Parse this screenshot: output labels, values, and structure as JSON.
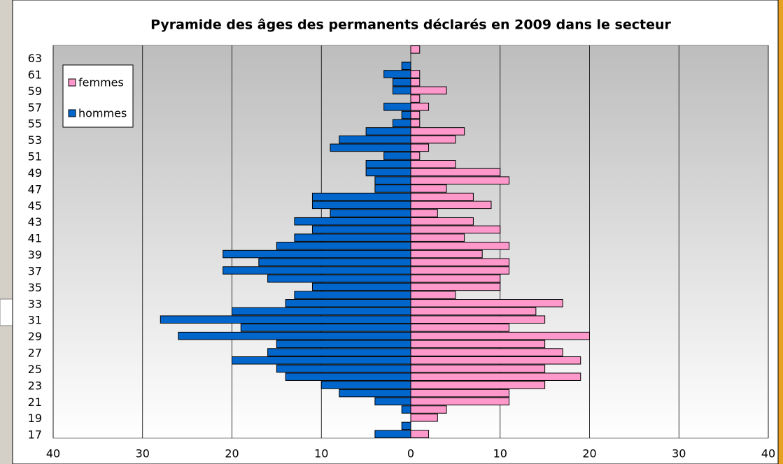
{
  "chart_data": {
    "type": "pyramid",
    "title": "Pyramide des âges des permanents déclarés en 2009 dans le secteur",
    "categories": [
      17,
      null,
      19,
      null,
      21,
      null,
      23,
      null,
      25,
      null,
      27,
      null,
      29,
      null,
      31,
      null,
      33,
      null,
      35,
      null,
      37,
      null,
      39,
      null,
      41,
      null,
      43,
      null,
      45,
      null,
      47,
      null,
      49,
      null,
      51,
      null,
      53,
      null,
      55,
      null,
      57,
      null,
      59,
      null,
      61,
      null,
      63,
      null
    ],
    "series": [
      {
        "name": "femmes",
        "color": "#ff99cc",
        "values": [
          2,
          0,
          3,
          4,
          11,
          11,
          15,
          19,
          15,
          19,
          17,
          15,
          20,
          11,
          15,
          14,
          17,
          5,
          10,
          10,
          11,
          11,
          8,
          11,
          6,
          10,
          7,
          3,
          9,
          7,
          4,
          11,
          10,
          5,
          1,
          2,
          5,
          6,
          1,
          1,
          2,
          1,
          4,
          1,
          1,
          0,
          0,
          1
        ]
      },
      {
        "name": "hommes",
        "color": "#0066cc",
        "side": "left",
        "values": [
          4,
          1,
          0,
          1,
          4,
          8,
          10,
          14,
          15,
          20,
          16,
          15,
          26,
          19,
          28,
          20,
          14,
          13,
          11,
          16,
          21,
          17,
          21,
          15,
          13,
          11,
          13,
          9,
          11,
          11,
          4,
          4,
          5,
          5,
          3,
          9,
          8,
          5,
          2,
          1,
          3,
          0,
          2,
          2,
          3,
          1,
          0,
          0
        ]
      }
    ],
    "xlim": [
      -40,
      40
    ],
    "xticks": [
      {
        "value": -40,
        "label": "40"
      },
      {
        "value": -30,
        "label": "30"
      },
      {
        "value": -20,
        "label": "20"
      },
      {
        "value": -10,
        "label": "10"
      },
      0,
      10,
      20,
      30,
      40
    ],
    "grid": true,
    "legend": "upper left"
  }
}
